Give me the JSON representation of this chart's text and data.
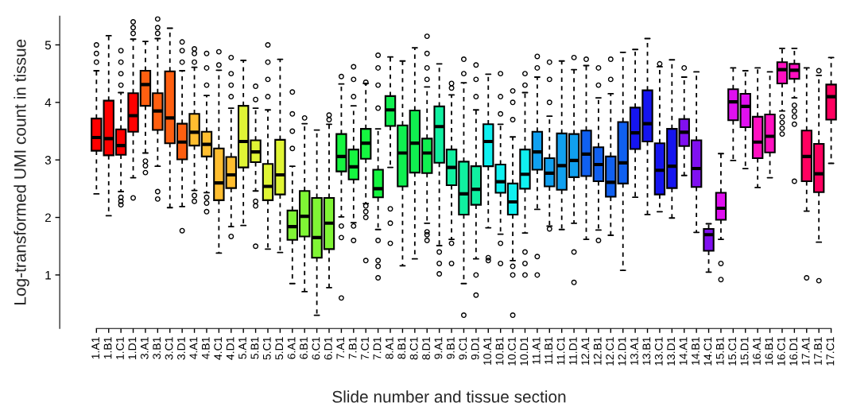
{
  "chart_data": {
    "type": "box",
    "ylabel": "Log-transformed UMI count in tissue",
    "xlabel": "Slide number and tissue section",
    "categories": [
      "1.A1",
      "1.B1",
      "1.C1",
      "1.D1",
      "3.A1",
      "3.B1",
      "3.C1",
      "3.D1",
      "4.A1",
      "4.B1",
      "4.C1",
      "4.D1",
      "5.A1",
      "5.B1",
      "5.C1",
      "5.D1",
      "6.A1",
      "6.B1",
      "6.C1",
      "6.D1",
      "7.A1",
      "7.B1",
      "7.C1",
      "7.D1",
      "8.A1",
      "8.B1",
      "8.C1",
      "8.D1",
      "9.A1",
      "9.B1",
      "9.C1",
      "9.D1",
      "10.A1",
      "10.B1",
      "10.C1",
      "10.D1",
      "11.A1",
      "11.B1",
      "11.C1",
      "11.D1",
      "12.A1",
      "12.B1",
      "12.C1",
      "12.D1",
      "13.A1",
      "13.B1",
      "13.C1",
      "13.D1",
      "14.A1",
      "14.B1",
      "14.C1",
      "15.B1",
      "15.C1",
      "15.D1",
      "16.A1",
      "16.B1",
      "16.C1",
      "16.D1",
      "17.A1",
      "17.B1",
      "17.C1"
    ],
    "colors": [
      "#ff0000",
      "#ff0000",
      "#ff0000",
      "#ff0000",
      "#ff5f10",
      "#ff5f10",
      "#ff5f10",
      "#ff5f10",
      "#ffbe30",
      "#ffbe30",
      "#ffbe30",
      "#ffbe30",
      "#e0f535",
      "#e0f535",
      "#e0f535",
      "#e0f535",
      "#80f535",
      "#80f535",
      "#80f535",
      "#80f535",
      "#15f540",
      "#15f540",
      "#15f540",
      "#15f540",
      "#10f050",
      "#10f050",
      "#10f050",
      "#10f050",
      "#10f0a0",
      "#10f0a0",
      "#10f0a0",
      "#10f0a0",
      "#10f0f0",
      "#10f0f0",
      "#10f0f0",
      "#10f0f0",
      "#10a0f0",
      "#10a0f0",
      "#10a0f0",
      "#10a0f0",
      "#1060f0",
      "#1060f0",
      "#1060f0",
      "#1060f0",
      "#1515f0",
      "#1515f0",
      "#1515f0",
      "#1515f0",
      "#8010f0",
      "#8010f0",
      "#8010f0",
      "#e010f0",
      "#e010f0",
      "#e010f0",
      "#ff10c0",
      "#ff10c0",
      "#ff10c0",
      "#ff10c0",
      "#ff0060",
      "#ff0060",
      "#ff0060"
    ],
    "boxes": [
      {
        "low": 2.41,
        "q1": 3.16,
        "median": 3.39,
        "q3": 3.72,
        "high": 4.55,
        "outliers": [
          4.7,
          4.85,
          5.0
        ]
      },
      {
        "low": 2.03,
        "q1": 3.08,
        "median": 3.37,
        "q3": 4.03,
        "high": 5.16
      },
      {
        "low": 2.45,
        "q1": 3.09,
        "median": 3.25,
        "q3": 3.53,
        "high": 4.17,
        "outliers": [
          4.3,
          4.5,
          4.7,
          4.9,
          2.35,
          2.28,
          2.22
        ]
      },
      {
        "low": 2.69,
        "q1": 3.49,
        "median": 3.77,
        "q3": 4.16,
        "high": 5.1,
        "outliers": [
          5.2,
          5.3,
          5.4,
          2.34
        ]
      },
      {
        "low": 3.12,
        "q1": 3.94,
        "median": 4.31,
        "q3": 4.55,
        "high": 5.06,
        "outliers": [
          2.98,
          2.9,
          2.78
        ]
      },
      {
        "low": 2.89,
        "q1": 3.52,
        "median": 3.85,
        "q3": 4.16,
        "high": 5.11,
        "outliers": [
          5.2,
          5.3,
          5.45,
          2.45,
          2.32
        ]
      },
      {
        "low": 2.17,
        "q1": 3.29,
        "median": 3.73,
        "q3": 4.54,
        "high": 5.29
      },
      {
        "low": 2.19,
        "q1": 3.01,
        "median": 3.31,
        "q3": 3.63,
        "high": 4.55,
        "outliers": [
          4.7,
          4.9,
          5.05,
          1.77
        ]
      },
      {
        "low": 2.47,
        "q1": 3.25,
        "median": 3.48,
        "q3": 3.8,
        "high": 4.61,
        "outliers": [
          4.7,
          4.85,
          4.93,
          2.38,
          2.28
        ]
      },
      {
        "low": 2.43,
        "q1": 3.06,
        "median": 3.27,
        "q3": 3.49,
        "high": 4.12,
        "outliers": [
          4.3,
          4.6,
          4.85,
          2.35,
          2.25,
          2.1
        ]
      },
      {
        "low": 1.38,
        "q1": 2.3,
        "median": 2.6,
        "q3": 3.2,
        "high": 4.56,
        "outliers": [
          4.65,
          4.88
        ]
      },
      {
        "low": 1.84,
        "q1": 2.51,
        "median": 2.74,
        "q3": 3.05,
        "high": 3.9,
        "outliers": [
          4.1,
          4.3,
          4.5,
          4.78,
          1.67
        ]
      },
      {
        "low": 1.86,
        "q1": 2.87,
        "median": 3.32,
        "q3": 3.94,
        "high": 4.73
      },
      {
        "low": 2.46,
        "q1": 2.96,
        "median": 3.14,
        "q3": 3.34,
        "high": 3.9,
        "outliers": [
          4.05,
          4.28,
          2.28,
          2.2,
          1.5
        ]
      },
      {
        "low": 1.45,
        "q1": 2.3,
        "median": 2.54,
        "q3": 2.93,
        "high": 3.87,
        "outliers": [
          4.1,
          4.4,
          4.7,
          5.0
        ]
      },
      {
        "low": 1.39,
        "q1": 2.4,
        "median": 2.74,
        "q3": 3.35,
        "high": 4.75
      },
      {
        "low": 0.85,
        "q1": 1.61,
        "median": 1.84,
        "q3": 2.12,
        "high": 2.89,
        "outliers": [
          3.2,
          3.5,
          3.8,
          4.18
        ]
      },
      {
        "low": 0.71,
        "q1": 1.67,
        "median": 2.02,
        "q3": 2.46,
        "high": 3.63,
        "outliers": [
          3.73
        ]
      },
      {
        "low": 0.3,
        "q1": 1.3,
        "median": 1.65,
        "q3": 2.34,
        "high": 3.52
      },
      {
        "low": 0.78,
        "q1": 1.45,
        "median": 1.9,
        "q3": 2.34,
        "high": 3.62,
        "outliers": [
          3.7,
          3.78
        ]
      },
      {
        "low": 2.01,
        "q1": 2.8,
        "median": 3.06,
        "q3": 3.45,
        "high": 4.32,
        "outliers": [
          4.45,
          1.85,
          1.65,
          0.6
        ]
      },
      {
        "low": 1.91,
        "q1": 2.66,
        "median": 2.88,
        "q3": 3.18,
        "high": 3.94,
        "outliers": [
          4.1,
          4.4,
          4.62,
          1.85,
          1.6
        ]
      },
      {
        "low": 2.24,
        "q1": 3.02,
        "median": 3.29,
        "q3": 3.54,
        "high": 4.33,
        "outliers": [
          4.35,
          2.2,
          2.1,
          2.0,
          1.25
        ]
      },
      {
        "low": 1.79,
        "q1": 2.35,
        "median": 2.5,
        "q3": 2.83,
        "high": 3.54,
        "outliers": [
          3.9,
          4.3,
          4.6,
          4.82,
          1.6,
          1.25,
          1.15,
          0.95
        ]
      },
      {
        "low": 2.87,
        "q1": 3.59,
        "median": 3.87,
        "q3": 4.11,
        "high": 4.79,
        "outliers": [
          2.15,
          1.9,
          1.55
        ]
      },
      {
        "low": 1.16,
        "q1": 2.54,
        "median": 3.12,
        "q3": 3.6,
        "high": 4.72
      },
      {
        "low": 1.28,
        "q1": 2.78,
        "median": 3.29,
        "q3": 3.86,
        "high": 4.95
      },
      {
        "low": 1.9,
        "q1": 2.77,
        "median": 3.12,
        "q3": 3.37,
        "high": 4.27,
        "outliers": [
          4.4,
          4.6,
          4.85,
          5.15,
          1.75,
          1.7,
          1.6
        ]
      },
      {
        "low": 1.51,
        "q1": 2.95,
        "median": 3.58,
        "q3": 3.93,
        "high": 4.67,
        "outliers": [
          1.4,
          1.2,
          1.02
        ]
      },
      {
        "low": 1.62,
        "q1": 2.56,
        "median": 2.87,
        "q3": 3.18,
        "high": 4.13,
        "outliers": [
          4.25,
          4.33,
          1.55,
          1.2
        ]
      },
      {
        "low": 0.85,
        "q1": 2.05,
        "median": 2.41,
        "q3": 2.97,
        "high": 4.34,
        "outliers": [
          4.5,
          4.75,
          0.3
        ]
      },
      {
        "low": 1.28,
        "q1": 2.22,
        "median": 2.49,
        "q3": 2.89,
        "high": 3.87,
        "outliers": [
          4.1,
          4.4,
          4.65,
          1.0,
          0.65
        ]
      },
      {
        "low": 1.82,
        "q1": 2.89,
        "median": 3.32,
        "q3": 3.62,
        "high": 4.49,
        "outliers": [
          1.3,
          1.25
        ]
      },
      {
        "low": 1.71,
        "q1": 2.43,
        "median": 2.62,
        "q3": 2.92,
        "high": 3.62,
        "outliers": [
          3.8,
          4.1,
          4.5,
          1.55,
          1.2
        ]
      },
      {
        "low": 1.25,
        "q1": 2.05,
        "median": 2.27,
        "q3": 2.59,
        "high": 3.4,
        "outliers": [
          3.7,
          4.0,
          4.2,
          1.15,
          1.0,
          0.3
        ]
      },
      {
        "low": 1.73,
        "q1": 2.5,
        "median": 2.75,
        "q3": 3.18,
        "high": 4.17,
        "outliers": [
          4.3,
          4.5,
          1.4,
          1.2,
          1.0
        ]
      },
      {
        "low": 2.14,
        "q1": 2.83,
        "median": 3.14,
        "q3": 3.49,
        "high": 4.44,
        "outliers": [
          4.6,
          4.8,
          1.32,
          1.0
        ]
      },
      {
        "low": 1.85,
        "q1": 2.54,
        "median": 2.77,
        "q3": 3.03,
        "high": 3.76,
        "outliers": [
          4.0,
          4.4,
          4.7,
          1.8
        ]
      },
      {
        "low": 1.79,
        "q1": 2.48,
        "median": 2.9,
        "q3": 3.46,
        "high": 4.72
      },
      {
        "low": 1.9,
        "q1": 2.7,
        "median": 2.99,
        "q3": 3.45,
        "high": 4.57,
        "outliers": [
          4.78,
          1.4,
          0.87
        ]
      },
      {
        "low": 1.62,
        "q1": 2.72,
        "median": 3.1,
        "q3": 3.51,
        "high": 4.64,
        "outliers": [
          4.75
        ]
      },
      {
        "low": 1.78,
        "q1": 2.63,
        "median": 2.92,
        "q3": 3.22,
        "high": 4.08,
        "outliers": [
          4.3,
          4.6,
          1.6
        ]
      },
      {
        "low": 1.69,
        "q1": 2.36,
        "median": 2.61,
        "q3": 3.06,
        "high": 4.15,
        "outliers": [
          4.4,
          4.75
        ]
      },
      {
        "low": 1.08,
        "q1": 2.59,
        "median": 2.95,
        "q3": 3.66,
        "high": 4.87
      },
      {
        "low": 2.35,
        "q1": 3.19,
        "median": 3.47,
        "q3": 3.91,
        "high": 4.92
      },
      {
        "low": 2.05,
        "q1": 3.32,
        "median": 3.63,
        "q3": 4.21,
        "high": 5.11
      },
      {
        "low": 2.1,
        "q1": 2.4,
        "median": 2.82,
        "q3": 3.29,
        "high": 4.62,
        "outliers": [
          4.67
        ]
      },
      {
        "low": 1.99,
        "q1": 2.51,
        "median": 2.89,
        "q3": 3.54,
        "high": 4.74
      },
      {
        "low": 2.73,
        "q1": 3.24,
        "median": 3.48,
        "q3": 3.71,
        "high": 4.44,
        "outliers": [
          4.6
        ]
      },
      {
        "low": 1.74,
        "q1": 2.53,
        "median": 2.85,
        "q3": 3.34,
        "high": 4.53
      },
      {
        "low": 1.05,
        "q1": 1.42,
        "median": 1.7,
        "q3": 1.8,
        "high": 1.89
      },
      {
        "low": 1.62,
        "q1": 1.96,
        "median": 2.16,
        "q3": 2.43,
        "high": 3.11,
        "outliers": [
          1.2,
          0.92
        ]
      },
      {
        "low": 2.99,
        "q1": 3.69,
        "median": 4.01,
        "q3": 4.23,
        "high": 4.6
      },
      {
        "low": 2.85,
        "q1": 3.57,
        "median": 3.93,
        "q3": 4.15,
        "high": 4.55
      },
      {
        "low": 2.52,
        "q1": 3.03,
        "median": 3.31,
        "q3": 3.75,
        "high": 4.6
      },
      {
        "low": 2.69,
        "q1": 3.13,
        "median": 3.41,
        "q3": 3.79,
        "high": 4.53
      },
      {
        "low": 3.85,
        "q1": 4.33,
        "median": 4.57,
        "q3": 4.7,
        "high": 4.94,
        "outliers": [
          3.75,
          3.65,
          3.55,
          3.45
        ]
      },
      {
        "low": 4.08,
        "q1": 4.41,
        "median": 4.56,
        "q3": 4.67,
        "high": 4.94,
        "outliers": [
          3.95,
          3.85,
          3.75,
          3.62,
          2.63
        ]
      },
      {
        "low": 2.11,
        "q1": 2.63,
        "median": 3.06,
        "q3": 3.51,
        "high": 4.6,
        "outliers": [
          0.95
        ]
      },
      {
        "low": 1.57,
        "q1": 2.44,
        "median": 2.76,
        "q3": 3.28,
        "high": 4.47,
        "outliers": [
          4.55,
          0.9
        ]
      },
      {
        "low": 2.94,
        "q1": 3.7,
        "median": 4.1,
        "q3": 4.31,
        "high": 4.78
      }
    ],
    "ylim": [
      0.07,
      5.5
    ],
    "yticks": [
      1,
      2,
      3,
      4,
      5
    ],
    "grid": false
  }
}
